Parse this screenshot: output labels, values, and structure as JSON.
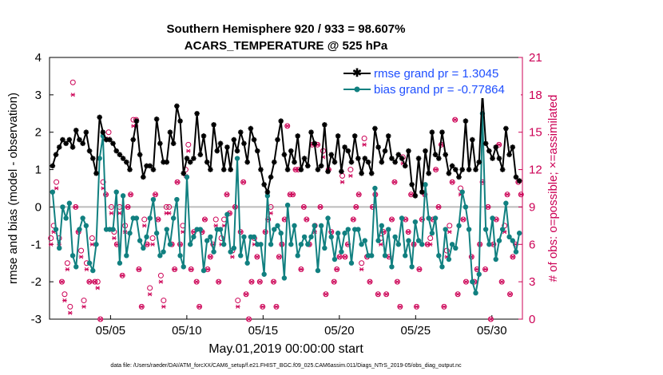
{
  "colors": {
    "rmse": "#000000",
    "bias": "#118080",
    "obs": "#cc0055",
    "zero": "#bbbbbb",
    "legend_text": "#1f4fff"
  },
  "chart_data": {
    "type": "line",
    "title": "Southern Hemisphere 920 / 933 = 98.607%",
    "subtitle": "ACARS_TEMPERATURE @ 525 hPa",
    "xlabel": "May.01,2019 00:00:00 start",
    "ylabel": "rmse and bias (model - observation)",
    "ylabel_right": "# of obs: o=possible; ×=assimilated",
    "footer": "data file: /Users/raeder/DAI/ATM_forcXX/CAM6_setup/f.e21.FHIST_BGC.f09_025.CAM6assim.011/Diags_NTrS_2019-05/obs_diag_output.nc",
    "xlim": [
      1.0,
      32.0
    ],
    "ylim": [
      -3,
      4
    ],
    "ylim_right": [
      0,
      21
    ],
    "yticks": [
      "4",
      "3",
      "2",
      "1",
      "0",
      "-1",
      "-2",
      "-3"
    ],
    "yticks_right": [
      "21",
      "18",
      "15",
      "12",
      "9",
      "6",
      "3",
      "0"
    ],
    "xticks": [
      {
        "day": 5,
        "label": "05/05"
      },
      {
        "day": 10,
        "label": "05/10"
      },
      {
        "day": 15,
        "label": "05/15"
      },
      {
        "day": 20,
        "label": "05/20"
      },
      {
        "day": 25,
        "label": "05/25"
      },
      {
        "day": 30,
        "label": "05/30"
      }
    ],
    "legend": [
      {
        "label": "rmse grand pr = 1.3045",
        "series": "rmse"
      },
      {
        "label": "bias grand pr = -0.77864",
        "series": "bias"
      }
    ],
    "series": [
      {
        "name": "rmse",
        "values": [
          1.1,
          1.4,
          1.6,
          1.8,
          1.7,
          1.8,
          1.6,
          2.05,
          1.8,
          1.7,
          2.0,
          1.5,
          1.3,
          0.9,
          2.4,
          2.0,
          1.8,
          1.8,
          1.7,
          1.5,
          1.4,
          1.3,
          1.2,
          1.0,
          1.8,
          2.3,
          1.4,
          0.8,
          1.1,
          1.1,
          1.0,
          2.35,
          1.7,
          1.2,
          1.2,
          2.0,
          1.7,
          2.7,
          2.3,
          0.9,
          1.3,
          1.2,
          1.3,
          2.5,
          1.4,
          1.9,
          1.2,
          1.0,
          2.2,
          1.5,
          1.7,
          1.0,
          1.6,
          1.0,
          1.8,
          1.5,
          2.0,
          1.7,
          1.2,
          2.1,
          1.8,
          1.5,
          1.0,
          0.6,
          0.4,
          0.8,
          1.2,
          1.8,
          2.3,
          1.4,
          1.0,
          1.5,
          1.2,
          1.9,
          1.0,
          1.3,
          1.1,
          2.0,
          1.7,
          1.0,
          1.1,
          2.2,
          0.95,
          1.4,
          1.2,
          1.9,
          0.95,
          1.6,
          1.5,
          1.2,
          1.9,
          1.3,
          0.9,
          1.3,
          1.2,
          0.9,
          2.1,
          1.6,
          1.2,
          1.5,
          1.9,
          1.3,
          1.2,
          1.4,
          1.3,
          1.1,
          1.5,
          0.6,
          0.3,
          1.3,
          0.4,
          1.5,
          0.9,
          2.0,
          1.4,
          1.3,
          2.0,
          1.4,
          0.9,
          1.1,
          1.0,
          0.8,
          1.0,
          2.3,
          1.0,
          1.8,
          1.0,
          1.2,
          3.05,
          1.7,
          1.5,
          1.3,
          1.6,
          1.3,
          1.0,
          2.1,
          1.4,
          1.6,
          0.8,
          0.7
        ]
      },
      {
        "name": "bias",
        "values": [
          0.4,
          -0.6,
          -1.1,
          0.0,
          -0.3,
          0.1,
          -1.3,
          -1.6,
          -0.6,
          -0.3,
          -0.5,
          -1.5,
          -1.7,
          -1.0,
          1.3,
          1.9,
          -0.6,
          -0.6,
          -0.6,
          0.4,
          -1.5,
          0.3,
          -1.3,
          -0.7,
          -0.3,
          -0.3,
          -0.9,
          -1.1,
          -0.8,
          -0.3,
          0.2,
          -0.7,
          -1.3,
          -1.2,
          -0.6,
          -1.0,
          -0.3,
          0.2,
          -1.3,
          -1.6,
          0.8,
          -1.0,
          -0.8,
          -0.6,
          -0.6,
          -1.7,
          -0.9,
          -0.8,
          -1.2,
          -0.6,
          -0.6,
          -1.0,
          -0.2,
          -1.2,
          -1.1,
          1.3,
          -1.3,
          -0.8,
          -1.5,
          -0.8,
          -0.8,
          -1.0,
          -1.0,
          -1.8,
          0.3,
          -1.0,
          -0.6,
          -0.5,
          -0.7,
          -1.9,
          0.05,
          -1.0,
          -0.5,
          -1.3,
          -1.0,
          -0.8,
          -1.0,
          -0.8,
          -0.5,
          -1.7,
          -0.5,
          -1.1,
          -0.3,
          -0.8,
          -1.4,
          -0.7,
          -1.2,
          -0.7,
          -0.6,
          -1.5,
          -0.6,
          -0.6,
          -1.0,
          -0.9,
          -1.3,
          -1.3,
          0.5,
          -0.9,
          -0.5,
          -1.3,
          -0.6,
          -1.6,
          -0.8,
          -1.0,
          -0.3,
          -1.3,
          -0.9,
          -1.6,
          -0.4,
          -0.9,
          -1.0,
          0.6,
          -0.3,
          -0.7,
          -0.3,
          -1.3,
          -1.6,
          -0.6,
          -1.4,
          -1.0,
          -1.1,
          -0.5,
          0.4,
          0.0,
          -0.6,
          -2.0,
          -2.3,
          -1.8,
          2.5,
          -0.6,
          -1.0,
          -0.3,
          -1.4,
          -0.9,
          -0.6,
          0.1,
          -0.8,
          -0.9,
          -1.2,
          -0.7
        ]
      }
    ],
    "obs_possible": [
      6.5,
      7.5,
      11,
      6.5,
      3,
      2,
      4.5,
      1,
      19,
      9,
      7,
      5.5,
      1.5,
      4.5,
      3,
      6.5,
      3,
      3,
      0,
      11,
      10,
      15,
      9,
      7,
      6,
      9,
      3.5,
      7.5,
      9,
      10,
      16,
      16,
      4,
      1,
      8,
      6,
      2.5,
      6.5,
      10,
      8,
      3.5,
      1.5,
      9,
      9,
      6,
      4,
      11,
      6,
      7.5,
      12,
      14,
      4,
      7,
      3,
      1,
      7,
      8,
      4,
      5,
      6,
      8,
      3,
      6.5,
      8,
      10,
      8.5,
      5.5,
      9,
      1.5,
      7,
      11,
      2,
      0,
      3,
      6.5,
      5,
      3,
      1,
      7,
      8,
      9,
      3,
      1,
      5,
      6,
      8,
      15.5,
      10,
      10,
      12,
      12,
      4,
      9,
      8,
      6,
      14,
      7.5,
      14,
      9,
      13.5,
      2,
      12,
      7,
      3,
      4,
      5,
      11.5,
      5,
      6,
      12,
      8,
      9,
      10,
      4.5,
      14.5,
      5,
      3,
      9,
      10,
      2,
      6.5,
      7,
      2,
      5,
      8,
      11,
      3,
      1,
      13,
      8,
      7,
      10,
      6,
      1,
      4,
      8,
      10,
      6,
      6.5,
      8,
      12,
      9,
      14,
      1,
      5.5,
      7.5,
      11,
      16,
      2,
      10.5,
      8,
      3,
      19.5,
      5,
      3,
      4,
      6,
      11,
      4,
      9,
      0,
      6,
      8,
      14,
      3,
      7.5,
      10,
      2,
      5,
      6,
      11,
      10
    ],
    "obs_assimilated": [
      6,
      7,
      10.5,
      6,
      3,
      1.5,
      4,
      0.5,
      18,
      9,
      7,
      5,
      1,
      4,
      3,
      6,
      3,
      2.5,
      0,
      10.5,
      10,
      14.5,
      8.5,
      6.5,
      6,
      8.5,
      3.5,
      7,
      9,
      10,
      15.5,
      15.5,
      4,
      1,
      7.5,
      6,
      2,
      6,
      10,
      8,
      3,
      1,
      8.5,
      8.5,
      6,
      4,
      11,
      6,
      7,
      11.5,
      13.5,
      4,
      7,
      3,
      1,
      7,
      8,
      4,
      5,
      6,
      7.5,
      3,
      6,
      7.5,
      10,
      8.5,
      5,
      9,
      1,
      7,
      11,
      2,
      0,
      3,
      6,
      5,
      3,
      1,
      7,
      8,
      8.5,
      3,
      1,
      5,
      6,
      8,
      15.5,
      10,
      10,
      12,
      12,
      4,
      9,
      8,
      6,
      14,
      7,
      14,
      9,
      13,
      2,
      12,
      7,
      3,
      4,
      5,
      11,
      5,
      6,
      11.5,
      8,
      9,
      10,
      4,
      14,
      5,
      3,
      9,
      10,
      2,
      6,
      7,
      2,
      5,
      8,
      11,
      3,
      1,
      12.5,
      8,
      7,
      10,
      6,
      1,
      4,
      8,
      10,
      6,
      6,
      8,
      12,
      9,
      14,
      1,
      5,
      7,
      11,
      16,
      2,
      10,
      8,
      3,
      19,
      5,
      3,
      4,
      6,
      11,
      4,
      9,
      0,
      6,
      8,
      14,
      3,
      7,
      10,
      2,
      5,
      6,
      11,
      10
    ]
  }
}
